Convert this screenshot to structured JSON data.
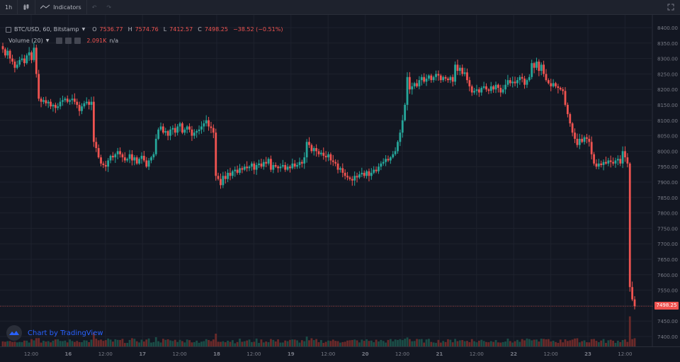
{
  "toolbar": {
    "interval": "1h",
    "indicators_label": "Indicators",
    "candle_icon": "candles-icon",
    "indicators_icon": "indicators-icon",
    "undo_icon": "undo-icon",
    "redo_icon": "redo-icon",
    "fullscreen_icon": "fullscreen-icon"
  },
  "legend": {
    "symbol": "BTC/USD, 60, Bitstamp",
    "o_label": "O",
    "o_value": "7536.77",
    "h_label": "H",
    "h_value": "7574.76",
    "l_label": "L",
    "l_value": "7412.57",
    "c_label": "C",
    "c_value": "7498.25",
    "change": "−38.52 (−0.51%)"
  },
  "volume_legend": {
    "name": "Volume (20)",
    "value": "2.091K",
    "na": "n/a"
  },
  "watermark": "Chart by TradingView",
  "last_price_label": "7498.25",
  "colors": {
    "background": "#131722",
    "up": "#26a69a",
    "down": "#ef5350",
    "grid": "#1e222d",
    "text": "#787b86"
  },
  "chart_data": {
    "type": "candlestick",
    "symbol": "BTC/USD",
    "interval": "60",
    "exchange": "Bitstamp",
    "y_ticks": [
      7400,
      7450,
      7500,
      7550,
      7600,
      7650,
      7700,
      7750,
      7800,
      7850,
      7900,
      7950,
      8000,
      8050,
      8100,
      8150,
      8200,
      8250,
      8300,
      8350,
      8400
    ],
    "y_tick_labels": [
      "7400.00",
      "7450.00",
      "7500.00",
      "7550.00",
      "7600.00",
      "7650.00",
      "7700.00",
      "7750.00",
      "7800.00",
      "7850.00",
      "7900.00",
      "7950.00",
      "8000.00",
      "8050.00",
      "8100.00",
      "8150.00",
      "8200.00",
      "8250.00",
      "8300.00",
      "8350.00",
      "8400.00"
    ],
    "ylim": [
      7380,
      8430
    ],
    "x_labels": [
      "12:00",
      "16",
      "12:00",
      "17",
      "12:00",
      "18",
      "12:00",
      "19",
      "12:00",
      "20",
      "12:00",
      "21",
      "12:00",
      "22",
      "12:00",
      "23",
      "12:00"
    ],
    "last_price": 7498.25,
    "grid": true,
    "series": [
      {
        "name": "Price",
        "close": [
          8330,
          8310,
          8325,
          8300,
          8290,
          8270,
          8280,
          8295,
          8300,
          8285,
          8310,
          8320,
          8295,
          8335,
          8250,
          8170,
          8160,
          8165,
          8155,
          8160,
          8145,
          8150,
          8140,
          8145,
          8160,
          8165,
          8170,
          8160,
          8165,
          8170,
          8160,
          8150,
          8130,
          8145,
          8155,
          8160,
          8150,
          8160,
          8030,
          8010,
          7980,
          7960,
          7955,
          7950,
          7970,
          7985,
          7980,
          7990,
          8000,
          7990,
          7980,
          7970,
          7975,
          7990,
          7970,
          7980,
          7960,
          7975,
          7985,
          7970,
          7950,
          7970,
          7980,
          7990,
          8040,
          8070,
          8080,
          8060,
          8065,
          8050,
          8070,
          8075,
          8060,
          8080,
          8090,
          8060,
          8070,
          8080,
          8070,
          8050,
          8060,
          8065,
          8070,
          8080,
          8090,
          8100,
          8080,
          8075,
          8060,
          7920,
          7910,
          7890,
          7920,
          7910,
          7930,
          7920,
          7935,
          7940,
          7930,
          7945,
          7940,
          7950,
          7945,
          7950,
          7960,
          7940,
          7955,
          7960,
          7950,
          7965,
          7960,
          7975,
          7940,
          7955,
          7950,
          7945,
          7950,
          7955,
          7940,
          7950,
          7945,
          7960,
          7950,
          7955,
          7965,
          7960,
          7980,
          8030,
          8020,
          8000,
          8010,
          8000,
          7990,
          7995,
          7985,
          7980,
          7990,
          7970,
          7965,
          7960,
          7940,
          7945,
          7930,
          7920,
          7915,
          7910,
          7905,
          7920,
          7915,
          7925,
          7930,
          7920,
          7935,
          7920,
          7930,
          7940,
          7935,
          7950,
          7960,
          7965,
          7975,
          7970,
          7980,
          7990,
          8000,
          8030,
          8060,
          8100,
          8150,
          8240,
          8200,
          8210,
          8220,
          8210,
          8230,
          8240,
          8225,
          8235,
          8245,
          8230,
          8240,
          8250,
          8245,
          8230,
          8240,
          8235,
          8230,
          8240,
          8225,
          8280,
          8260,
          8270,
          8250,
          8255,
          8230,
          8210,
          8190,
          8195,
          8200,
          8190,
          8205,
          8210,
          8200,
          8195,
          8210,
          8200,
          8215,
          8205,
          8190,
          8200,
          8215,
          8230,
          8220,
          8225,
          8220,
          8230,
          8240,
          8235,
          8215,
          8230,
          8240,
          8285,
          8270,
          8290,
          8260,
          8280,
          8250,
          8230,
          8220,
          8210,
          8220,
          8210,
          8205,
          8200,
          8195,
          8150,
          8120,
          8090,
          8060,
          8040,
          8020,
          8040,
          8030,
          8045,
          8040,
          8030,
          7990,
          7960,
          7950,
          7960,
          7955,
          7965,
          7960,
          7970,
          7965,
          7960,
          7970,
          7975,
          7960,
          8000,
          7980,
          7960,
          7560,
          7520,
          7498
        ]
      }
    ],
    "volume_max": 2.091
  }
}
